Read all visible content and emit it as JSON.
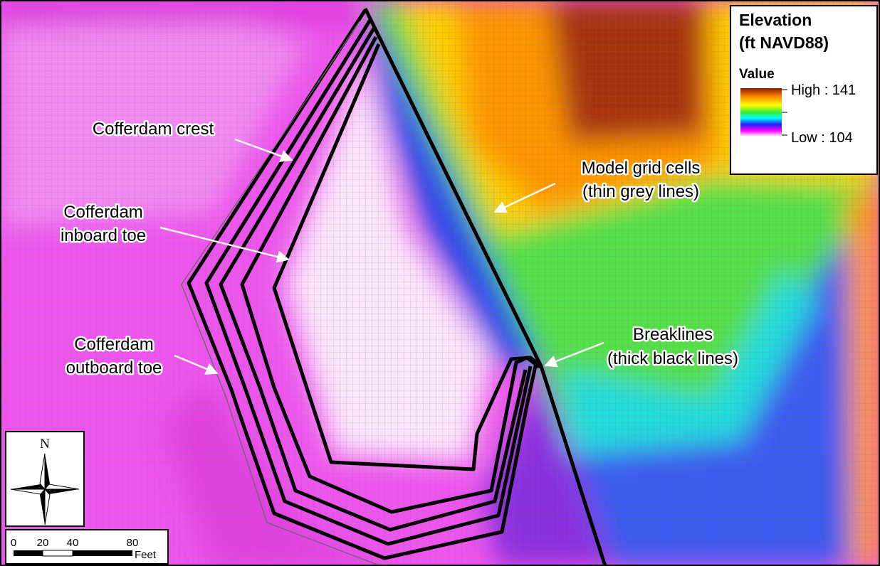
{
  "legend": {
    "title": [
      "Elevation",
      "(ft NAVD88)"
    ],
    "field": "Value",
    "high": "High : 141",
    "low": "Low : 104"
  },
  "annotations": [
    {
      "lines": [
        "Cofferdam crest"
      ]
    },
    {
      "lines": [
        "Cofferdam",
        "inboard toe"
      ]
    },
    {
      "lines": [
        "Cofferdam",
        "outboard toe"
      ]
    },
    {
      "lines": [
        "Model grid cells",
        "(thin grey lines)"
      ]
    },
    {
      "lines": [
        "Breaklines",
        "(thick black lines)"
      ]
    }
  ],
  "north_arrow": "N",
  "scale_bar": {
    "labels": [
      "0",
      "20",
      "40",
      "80"
    ],
    "unit": "Feet"
  }
}
